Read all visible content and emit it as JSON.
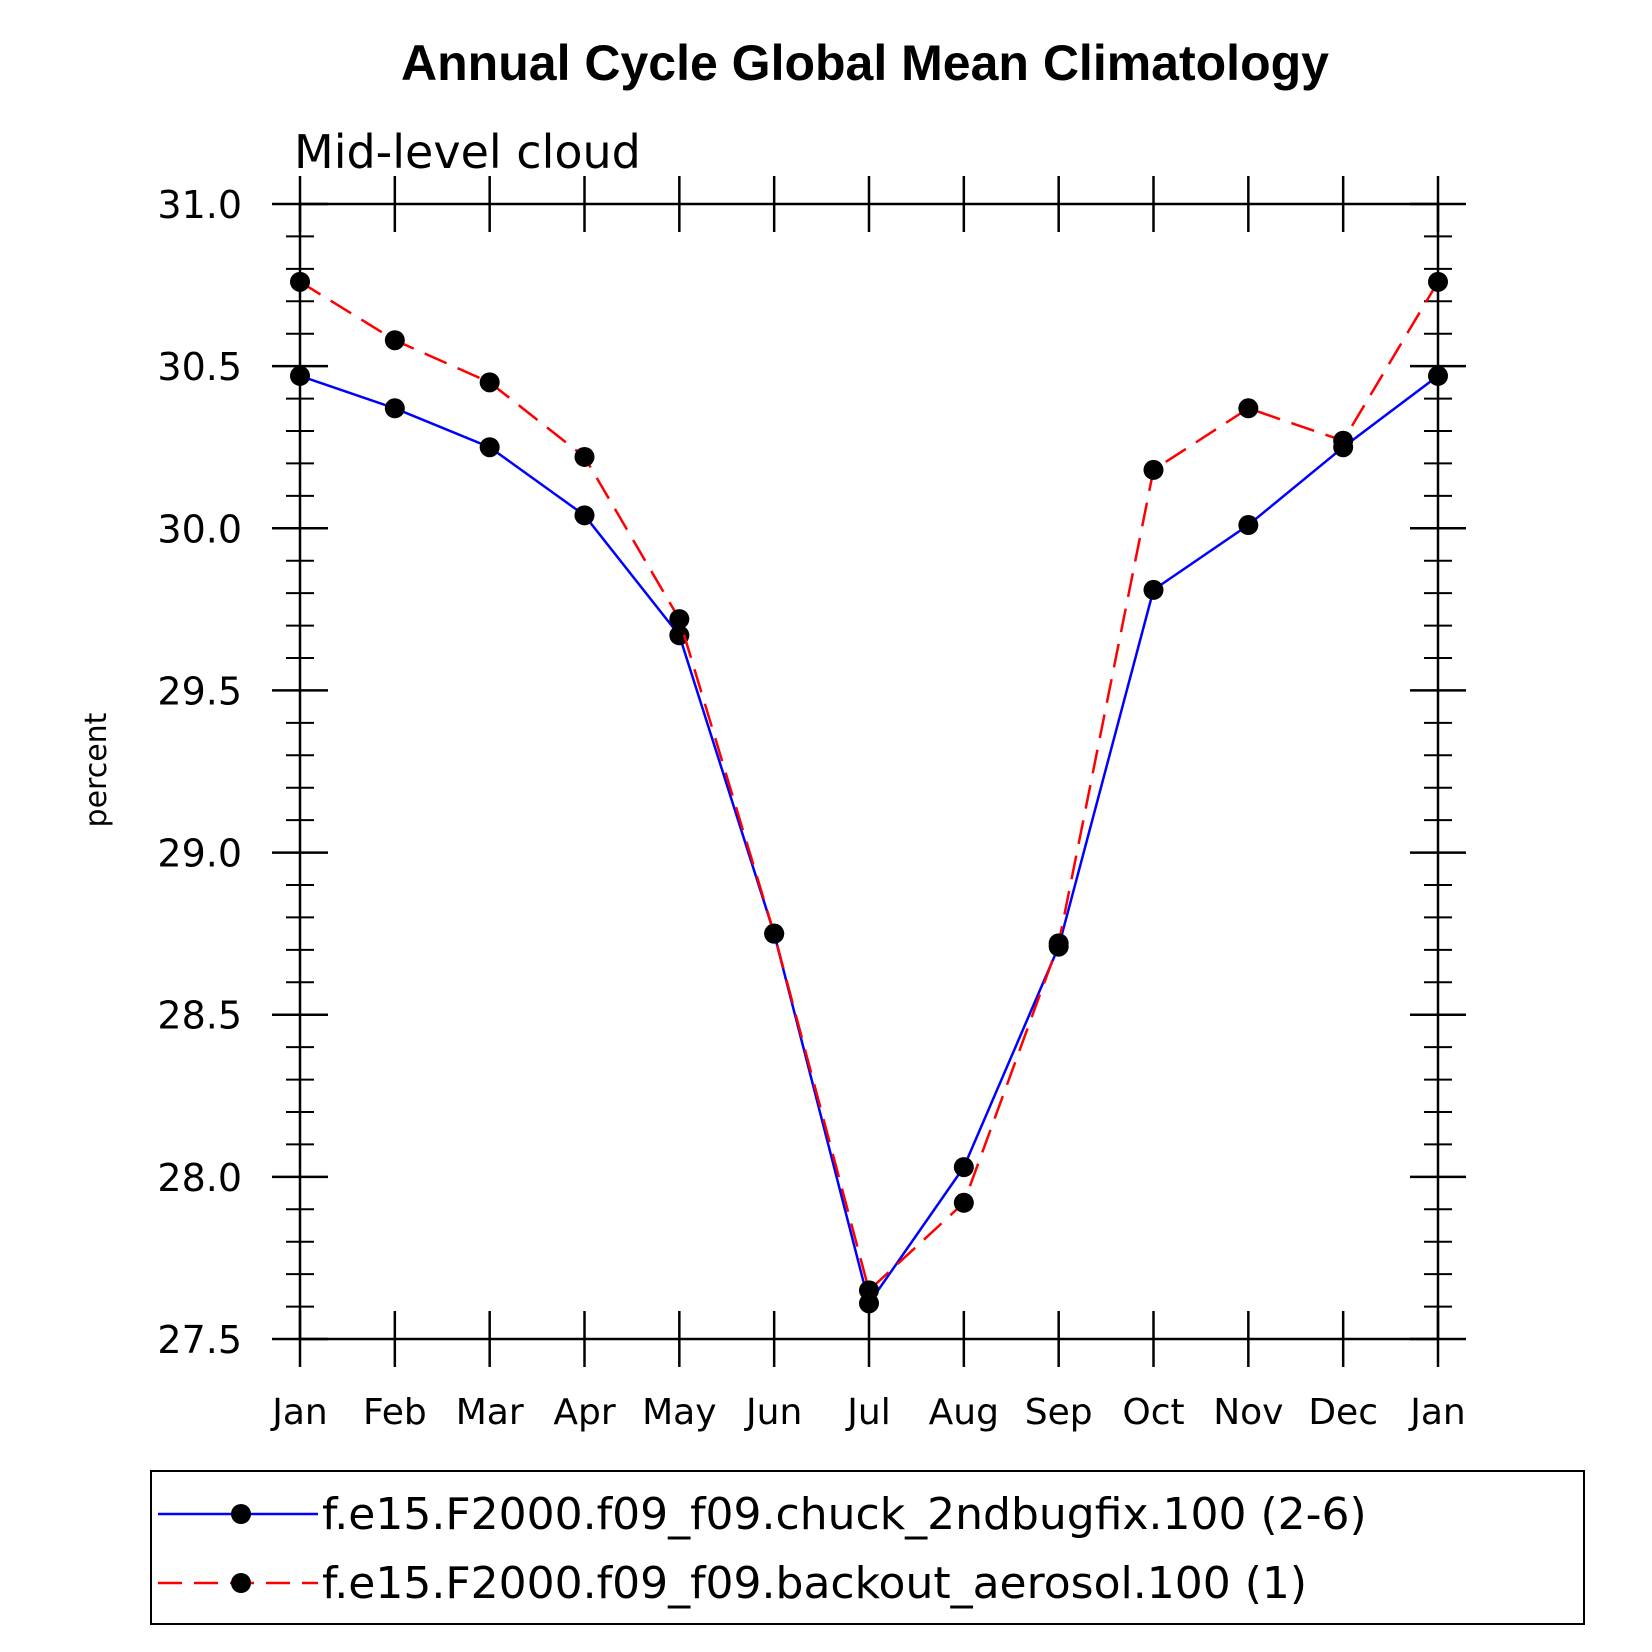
{
  "chart_data": {
    "type": "line",
    "title": "Annual Cycle Global Mean Climatology",
    "subtitle": "Mid-level cloud",
    "xlabel": "",
    "ylabel": "percent",
    "ylim": [
      27.5,
      31.0
    ],
    "yticks": [
      "27.5",
      "28.0",
      "28.5",
      "29.0",
      "29.5",
      "30.0",
      "30.5",
      "31.0"
    ],
    "categories": [
      "Jan",
      "Feb",
      "Mar",
      "Apr",
      "May",
      "Jun",
      "Jul",
      "Aug",
      "Sep",
      "Oct",
      "Nov",
      "Dec",
      "Jan"
    ],
    "grid": false,
    "series": [
      {
        "name": "f.e15.F2000.f09_f09.chuck_2ndbugfix.100 (2-6)",
        "color": "#0000ff",
        "dash": "solid",
        "values": [
          30.47,
          30.37,
          30.25,
          30.04,
          29.67,
          28.75,
          27.61,
          28.03,
          28.71,
          29.81,
          30.01,
          30.25,
          30.47
        ]
      },
      {
        "name": "f.e15.F2000.f09_f09.backout_aerosol.100 (1)",
        "color": "#ff0000",
        "dash": "dashed",
        "values": [
          30.76,
          30.58,
          30.45,
          30.22,
          29.72,
          28.75,
          27.65,
          27.92,
          28.72,
          30.18,
          30.37,
          30.27,
          30.76
        ]
      }
    ],
    "marker_color": "#000000",
    "legend_position": "bottom"
  }
}
